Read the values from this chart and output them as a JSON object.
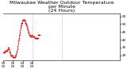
{
  "title": "Milwaukee Weather Outdoor Temperature\nper Minute\n(24 Hours)",
  "bg_color": "#ffffff",
  "line_color": "#cc0000",
  "grid_color": "#999999",
  "y_min": 27,
  "y_max": 57,
  "yticks": [
    30,
    35,
    40,
    45,
    50,
    55
  ],
  "ytick_labels": [
    "30",
    "35",
    "40",
    "45",
    "50",
    "55"
  ],
  "vline_positions": [
    360,
    720
  ],
  "x_min": 0,
  "x_max": 1440,
  "y_values": [
    32,
    32,
    32,
    32,
    32,
    32,
    32,
    32,
    32,
    32,
    32,
    32,
    32,
    32,
    32,
    32,
    32,
    32,
    32,
    32,
    33,
    33,
    33,
    33,
    33,
    33,
    33,
    33,
    33,
    33,
    33,
    33,
    33,
    33,
    33,
    33,
    33,
    33,
    33,
    33,
    33,
    33,
    33,
    33,
    33,
    33,
    33,
    33,
    33,
    33,
    33,
    33,
    33,
    34,
    34,
    34,
    34,
    34,
    34,
    35,
    35,
    35,
    35,
    35,
    35,
    35,
    35,
    34,
    34,
    34,
    34,
    34,
    34,
    34,
    33,
    33,
    33,
    33,
    32,
    32,
    32,
    32,
    32,
    32,
    32,
    31,
    31,
    31,
    31,
    31,
    31,
    30,
    30,
    30,
    30,
    30,
    30,
    30,
    30,
    30,
    30,
    30,
    30,
    30,
    30,
    30,
    30,
    30,
    30,
    30,
    30,
    30,
    30,
    30,
    30,
    29,
    29,
    29,
    29,
    29,
    29,
    29,
    29,
    29,
    29,
    29,
    29,
    29,
    29,
    29,
    29,
    29,
    29,
    29,
    29,
    29,
    29,
    29,
    29,
    29,
    29,
    29,
    29,
    29,
    29,
    29,
    29,
    29,
    30,
    30,
    30,
    30,
    30,
    30,
    30,
    30,
    30,
    31,
    31,
    31,
    31,
    31,
    32,
    32,
    32,
    32,
    32,
    33,
    33,
    33,
    33,
    33,
    34,
    34,
    34,
    34,
    35,
    35,
    36,
    36,
    36,
    36,
    37,
    37,
    38,
    38,
    38,
    39,
    39,
    39,
    40,
    40,
    40,
    41,
    41,
    41,
    42,
    42,
    42,
    43,
    43,
    43,
    44,
    44,
    44,
    45,
    45,
    45,
    46,
    46,
    46,
    47,
    47,
    47,
    47,
    48,
    48,
    48,
    48,
    49,
    49,
    49,
    49,
    50,
    50,
    50,
    50,
    51,
    51,
    51,
    51,
    51,
    52,
    52,
    52,
    52,
    52,
    52,
    53,
    53,
    53,
    53,
    53,
    53,
    53,
    53,
    53,
    53,
    53,
    53,
    53,
    53,
    53,
    53,
    53,
    53,
    53,
    53,
    53,
    53,
    53,
    53,
    53,
    53,
    53,
    53,
    53,
    52,
    52,
    52,
    52,
    52,
    52,
    51,
    51,
    51,
    51,
    51,
    51,
    50,
    50,
    50,
    50,
    50,
    50,
    49,
    49,
    49,
    49,
    49,
    49,
    48,
    48,
    48,
    48,
    48,
    48,
    47,
    47,
    47,
    47,
    47,
    46,
    46,
    46,
    46,
    46,
    46,
    45,
    45,
    45,
    45,
    45,
    44,
    44,
    44,
    44,
    44,
    44,
    43,
    43,
    43,
    43,
    43,
    43,
    43,
    43,
    43,
    43,
    43,
    43,
    43,
    43,
    43,
    42,
    42,
    42,
    42,
    42,
    42,
    42,
    42,
    42,
    42,
    42,
    42,
    42,
    42,
    42,
    43,
    43,
    43,
    43,
    43,
    43,
    43,
    43,
    43,
    42,
    42,
    42,
    42,
    42,
    42,
    42,
    42,
    42,
    42,
    42,
    42,
    42,
    42,
    42,
    42,
    42,
    42,
    42,
    42,
    42,
    42,
    42,
    42,
    42,
    42,
    42,
    42,
    42,
    41,
    41,
    41,
    41,
    41,
    41,
    41,
    41,
    41,
    41,
    41,
    41,
    41,
    41,
    41,
    41,
    41,
    41,
    41,
    41,
    41,
    41,
    41,
    41,
    41,
    41,
    41,
    41,
    41,
    41,
    41,
    41,
    41,
    41,
    41,
    41,
    41,
    41,
    41,
    41,
    41,
    41,
    41,
    41,
    41,
    43,
    43,
    43,
    43,
    43,
    43,
    43,
    43,
    43,
    43,
    43,
    43,
    43,
    43,
    43,
    43,
    43,
    43
  ],
  "xtick_step": 120,
  "title_fontsize": 4.5,
  "tick_fontsize": 3.0,
  "marker_size": 0.8,
  "marker_color": "#cc0000"
}
